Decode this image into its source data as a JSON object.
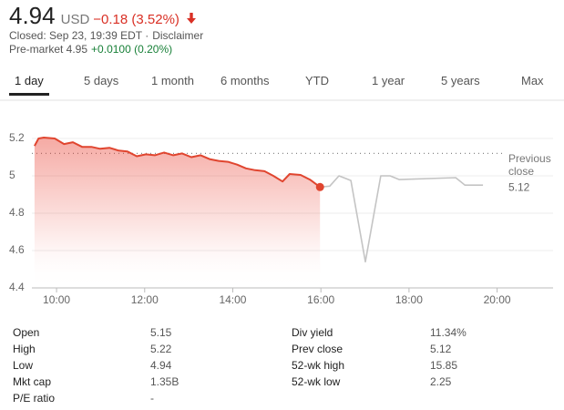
{
  "header": {
    "price": "4.94",
    "currency": "USD",
    "change": "−0.18 (3.52%)",
    "status": "Closed: Sep 23, 19:39 EDT ·",
    "disclaimer": "Disclaimer",
    "premarket": "Pre-market 4.95",
    "premarket_change": "+0.0100 (0.20%)"
  },
  "tabs": [
    "1 day",
    "5 days",
    "1 month",
    "6 months",
    "YTD",
    "1 year",
    "5 years",
    "Max"
  ],
  "chart_data": {
    "type": "line",
    "xlim": [
      9.44,
      21.27
    ],
    "ylim": [
      4.4,
      5.3
    ],
    "xticks": [
      {
        "value": 10,
        "label": "10:00"
      },
      {
        "value": 12,
        "label": "12:00"
      },
      {
        "value": 14,
        "label": "14:00"
      },
      {
        "value": 16,
        "label": "16:00"
      },
      {
        "value": 18,
        "label": "18:00"
      },
      {
        "value": 20,
        "label": "20:00"
      }
    ],
    "yticks": [
      4.4,
      4.6,
      4.8,
      5.0,
      5.2
    ],
    "grid": true,
    "previous_close": {
      "label": "Previous close",
      "value": 5.12
    },
    "series": [
      {
        "color": "#e0452f",
        "fill": true,
        "x": [
          9.5,
          9.59,
          9.71,
          9.96,
          10.17,
          10.37,
          10.58,
          10.79,
          10.99,
          11.2,
          11.41,
          11.61,
          11.82,
          12.03,
          12.23,
          12.44,
          12.65,
          12.85,
          13.06,
          13.27,
          13.47,
          13.68,
          13.89,
          14.1,
          14.3,
          14.51,
          14.72,
          14.92,
          15.13,
          15.29,
          15.54,
          15.75,
          15.98
        ],
        "values": [
          5.16,
          5.2,
          5.205,
          5.2,
          5.17,
          5.18,
          5.155,
          5.155,
          5.145,
          5.15,
          5.135,
          5.13,
          5.105,
          5.115,
          5.11,
          5.125,
          5.11,
          5.12,
          5.1,
          5.11,
          5.09,
          5.08,
          5.075,
          5.06,
          5.04,
          5.03,
          5.025,
          5.0,
          4.97,
          5.01,
          5.005,
          4.98,
          4.94
        ]
      },
      {
        "color": "#c4c4c4",
        "fill": false,
        "x": [
          15.98,
          16.2,
          16.41,
          16.68,
          17.01,
          17.36,
          17.57,
          17.78,
          19.06,
          19.27,
          19.68
        ],
        "values": [
          4.94,
          4.945,
          5.0,
          4.975,
          4.54,
          5.0,
          5.0,
          4.98,
          4.99,
          4.95,
          4.95
        ]
      }
    ]
  },
  "stats": {
    "left": [
      [
        "Open",
        "5.15"
      ],
      [
        "High",
        "5.22"
      ],
      [
        "Low",
        "4.94"
      ],
      [
        "Mkt cap",
        "1.35B"
      ],
      [
        "P/E ratio",
        "-"
      ]
    ],
    "right": [
      [
        "Div yield",
        "11.34%"
      ],
      [
        "Prev close",
        "5.12"
      ],
      [
        "52-wk high",
        "15.85"
      ],
      [
        "52-wk low",
        "2.25"
      ]
    ]
  }
}
